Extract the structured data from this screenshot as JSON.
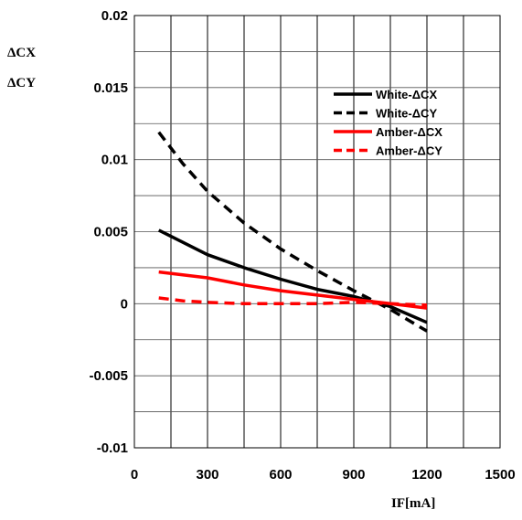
{
  "chart_data": {
    "type": "line",
    "ylabel_line1": "ΔCX",
    "ylabel_line2": "ΔCY",
    "xlabel": "IF[mA]",
    "xlim": [
      0,
      1500
    ],
    "ylim": [
      -0.01,
      0.02
    ],
    "x_ticks": [
      0,
      300,
      600,
      900,
      1200,
      1500
    ],
    "x_tick_labels": [
      "0",
      "300",
      "600",
      "900",
      "1200",
      "1500"
    ],
    "y_ticks": [
      0.02,
      0.015,
      0.01,
      0.005,
      0,
      -0.005,
      -0.01
    ],
    "y_tick_labels": [
      "0.02",
      "0.015",
      "0.01",
      "0.005",
      "0",
      "-0.005",
      "-0.01"
    ],
    "x_minor_step": 150,
    "y_minor_step": 0.0025,
    "grid": true,
    "legend_position": "top-right",
    "series": [
      {
        "name": "White-ΔCX",
        "color": "#000000",
        "dash": "solid",
        "x": [
          100,
          300,
          450,
          600,
          750,
          900,
          1050,
          1200
        ],
        "y": [
          0.0051,
          0.0034,
          0.0025,
          0.0017,
          0.001,
          0.0005,
          -0.0002,
          -0.0013
        ]
      },
      {
        "name": "White-ΔCY",
        "color": "#000000",
        "dash": "dashed",
        "x": [
          100,
          200,
          300,
          450,
          600,
          750,
          900,
          1050,
          1200
        ],
        "y": [
          0.0119,
          0.0097,
          0.0078,
          0.0056,
          0.0038,
          0.0023,
          0.0009,
          -0.0004,
          -0.0019
        ]
      },
      {
        "name": "Amber-ΔCX",
        "color": "#ff0000",
        "dash": "solid",
        "x": [
          100,
          300,
          450,
          600,
          750,
          900,
          1050,
          1200
        ],
        "y": [
          0.0022,
          0.0018,
          0.0013,
          0.0009,
          0.0006,
          0.0003,
          0.0,
          -0.0003
        ]
      },
      {
        "name": "Amber-ΔCY",
        "color": "#ff0000",
        "dash": "dashed",
        "x": [
          100,
          200,
          300,
          450,
          600,
          750,
          900,
          1050,
          1200
        ],
        "y": [
          0.0004,
          0.0002,
          0.0001,
          0.0,
          0.0,
          0.0,
          0.0001,
          0.0,
          -0.0001
        ]
      }
    ]
  }
}
